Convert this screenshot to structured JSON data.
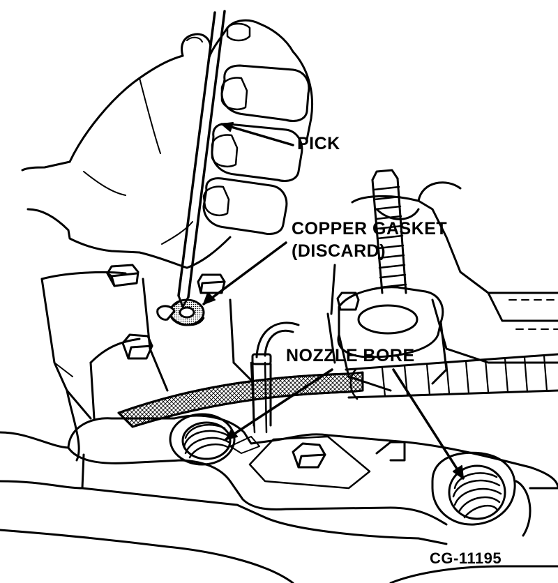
{
  "labels": {
    "pick": "PICK",
    "copper_gasket": "COPPER GASKET",
    "discard": "(DISCARD)",
    "nozzle_bore": "NOZZLE BORE",
    "figure_id": "CG-11195"
  },
  "colors": {
    "ink": "#000000",
    "paper": "#ffffff"
  }
}
